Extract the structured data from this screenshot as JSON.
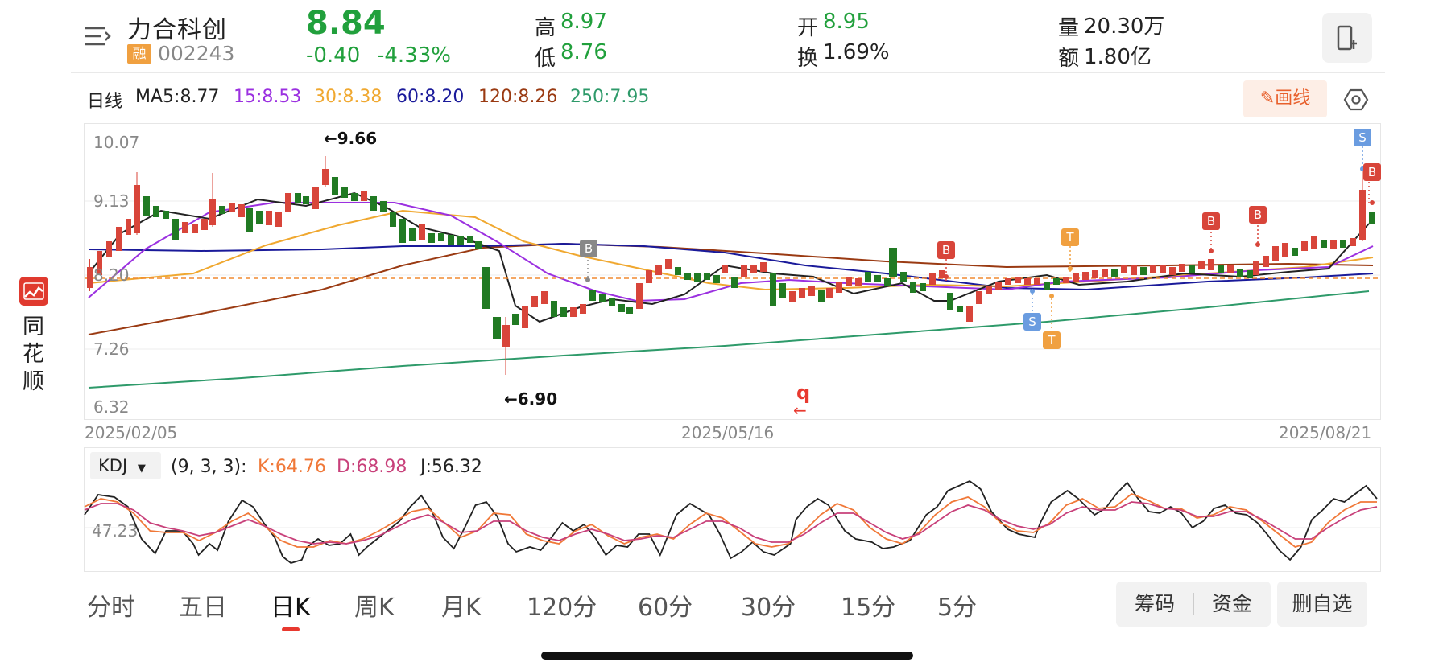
{
  "header": {
    "stock_name": "力合科创",
    "margin_badge": "融",
    "stock_code": "002243",
    "price": "8.84",
    "change": "-0.40",
    "change_pct": "-4.33%",
    "high_label": "高",
    "high_value": "8.97",
    "low_label": "低",
    "low_value": "8.76",
    "open_label": "开",
    "open_value": "8.95",
    "turnover_label": "换",
    "turnover_value": "1.69%",
    "volume_label": "量",
    "volume_value": "20.30万",
    "amount_label": "额",
    "amount_value": "1.80亿",
    "icons": [
      "menu-icon",
      "phone-icon"
    ]
  },
  "ma_bar": {
    "period_label": "日线",
    "ma5": "MA5:8.77",
    "ma15": "15:8.53",
    "ma30": "30:8.38",
    "ma60": "60:8.20",
    "ma120": "120:8.26",
    "ma250": "250:7.95",
    "draw_button": "画线",
    "colors": {
      "ma5": "#222222",
      "ma15": "#9b30e0",
      "ma30": "#f0a830",
      "ma60": "#1a1a9a",
      "ma120": "#9a3a12",
      "ma250": "#2e9a6a",
      "up": "#d8453a",
      "down": "#217a23"
    }
  },
  "main_chart": {
    "y_labels": [
      "10.07",
      "9.13",
      "8.20",
      "7.26",
      "6.32"
    ],
    "dates": [
      "2025/02/05",
      "2025/05/16",
      "2025/08/21"
    ],
    "high_anno": "←9.66",
    "low_anno": "←6.90",
    "signal_markers": [
      "B",
      "B",
      "B",
      "B",
      "B",
      "S",
      "S",
      "T",
      "T"
    ],
    "q_marker": "q",
    "q_arrow": "←"
  },
  "kdj": {
    "selector": "KDJ",
    "params": "(9, 3, 3):",
    "k": "K:64.76",
    "d": "D:68.98",
    "j": "J:56.32",
    "y_label": "47.23"
  },
  "sidebar": {
    "logo": "同花顺-logo",
    "text": "同花顺"
  },
  "tabs": [
    "分时",
    "五日",
    "日K",
    "周K",
    "月K",
    "120分",
    "60分",
    "30分",
    "15分",
    "5分"
  ],
  "active_tab": "日K",
  "buttons": {
    "chips": "筹码",
    "funds": "资金",
    "remove": "删自选"
  }
}
